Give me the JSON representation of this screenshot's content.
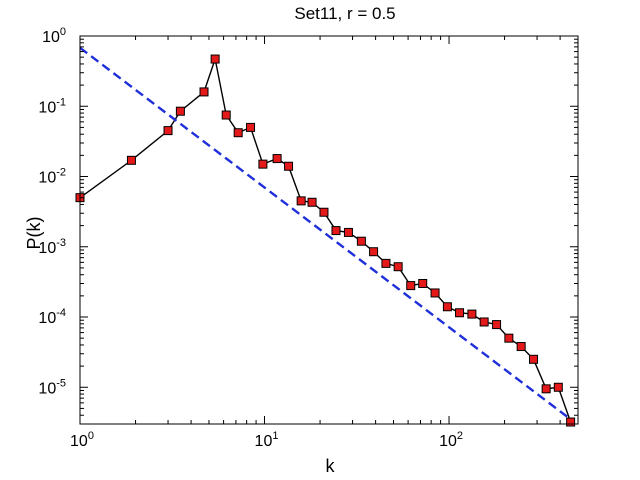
{
  "chart_data": {
    "type": "line",
    "title": "Set11, r = 0.5",
    "xlabel": "k",
    "ylabel": "P(k)",
    "xscale": "log",
    "yscale": "log",
    "xlim": [
      1,
      500
    ],
    "ylim": [
      3e-06,
      1
    ],
    "grid": false,
    "legend": "none",
    "x_ticks": [
      {
        "value": 1,
        "base": "10",
        "exp": "0"
      },
      {
        "value": 10,
        "base": "10",
        "exp": "1"
      },
      {
        "value": 100,
        "base": "10",
        "exp": "2"
      }
    ],
    "y_ticks": [
      {
        "value": 1e-05,
        "base": "10",
        "exp": "-5"
      },
      {
        "value": 0.0001,
        "base": "10",
        "exp": "-4"
      },
      {
        "value": 0.001,
        "base": "10",
        "exp": "-3"
      },
      {
        "value": 0.01,
        "base": "10",
        "exp": "-2"
      },
      {
        "value": 0.1,
        "base": "10",
        "exp": "-1"
      },
      {
        "value": 1,
        "base": "10",
        "exp": "0"
      }
    ],
    "series": [
      {
        "style": "solid-black-with-red-square-markers",
        "line_color": "#000000",
        "marker_color": "#e41a1a",
        "x": [
          1,
          1.9,
          3,
          3.5,
          4.7,
          5.4,
          6.2,
          7.2,
          8.4,
          9.8,
          11.7,
          13.5,
          15.8,
          18.1,
          21,
          24.4,
          28.5,
          33.5,
          39,
          45.5,
          53,
          62,
          72,
          84,
          98,
          114,
          133,
          155,
          181,
          211,
          246,
          287,
          336,
          391,
          456
        ],
        "y": [
          0.005,
          0.017,
          0.045,
          0.085,
          0.16,
          0.47,
          0.075,
          0.042,
          0.05,
          0.015,
          0.018,
          0.014,
          0.0045,
          0.0043,
          0.0031,
          0.0017,
          0.0016,
          0.0012,
          0.00085,
          0.00058,
          0.00052,
          0.00028,
          0.0003,
          0.00022,
          0.00014,
          0.000115,
          0.00011,
          8.5e-05,
          7.8e-05,
          5e-05,
          3.8e-05,
          2.5e-05,
          9.5e-06,
          1e-05,
          3.2e-06
        ]
      },
      {
        "style": "dashed-blue",
        "line_color": "#1f2fd9",
        "x": [
          1,
          456
        ],
        "y": [
          0.68,
          3.5e-06
        ]
      }
    ]
  }
}
